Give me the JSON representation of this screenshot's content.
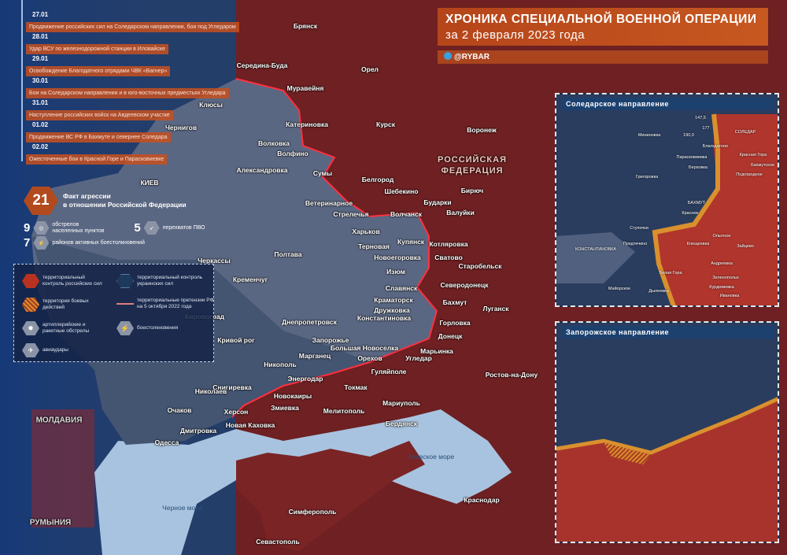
{
  "header": {
    "title": "ХРОНИКА СПЕЦИАЛЬНОЙ ВОЕННОЙ ОПЕРАЦИИ",
    "subtitle": "за 2 февраля 2023 года",
    "brand": "@RYBAR"
  },
  "timeline": [
    {
      "date": "27.01",
      "text": "Продвижение российских сил на Соледарском направлении, бои под Угледаром"
    },
    {
      "date": "28.01",
      "text": "Удар ВСУ по железнодорожной станции в Иловайске"
    },
    {
      "date": "29.01",
      "text": "Освобождение Благодатного отрядами ЧВК «Вагнер»"
    },
    {
      "date": "30.01",
      "text": "Бои на Соледарском направлении и в юго-восточных предместьях Угледара"
    },
    {
      "date": "31.01",
      "text": "Наступление российских войск на Авдеевском участке"
    },
    {
      "date": "01.02",
      "text": "Продвижение ВС РФ в Бахмуте и севернее Соледара"
    },
    {
      "date": "02.02",
      "text": "Ожесточенные бои в Красной Горе и Парасковиевке"
    }
  ],
  "stats": {
    "total": "21",
    "total_label_1": "Факт агрессии",
    "total_label_2": "в отношении Российской Федерации",
    "shelling_count": "9",
    "shelling_label_1": "обстрелов",
    "shelling_label_2": "населенных пунктов",
    "air_defense_count": "5",
    "air_defense_label": "перехватов ПВО",
    "clashes_count": "7",
    "clashes_label": "районов активных боестолкновений"
  },
  "legend": [
    {
      "icon": "hex-red",
      "color": "#b8321f",
      "text": "территориальный контроль российских сил"
    },
    {
      "icon": "hex-blue",
      "color": "#1d3a5c",
      "text": "территориальный контроль украинских сил"
    },
    {
      "icon": "hex-striped",
      "color": "#d47a2a",
      "text": "территория боевых действий"
    },
    {
      "icon": "line-pink",
      "color": "#e08080",
      "text": "территориальные претензии РФ на 5 октября 2022 года"
    },
    {
      "icon": "artillery-icon",
      "text": "артиллерийские и ракетные обстрелы"
    },
    {
      "icon": "lightning-icon",
      "text": "боестолкновения"
    },
    {
      "icon": "airstrike-icon",
      "text": "авиаудары"
    }
  ],
  "map": {
    "region_label_1": "РОССИЙСКАЯ",
    "region_label_2": "ФЕДЕРАЦИЯ",
    "cities": [
      "Брянск",
      "Орел",
      "Курск",
      "Воронеж",
      "Середина-Буда",
      "Муравейня",
      "Клюсы",
      "Чернигов",
      "Катериновка",
      "Волковка",
      "Волфино",
      "Александровка",
      "Сумы",
      "КИЕВ",
      "Белгород",
      "Шебекино",
      "Бирюч",
      "Бударки",
      "Ветеринарное",
      "Стрелечья",
      "Волчанск",
      "Валуйки",
      "Харьков",
      "Купянск",
      "Терновая",
      "Котляровка",
      "Новоегоровка",
      "Сватово",
      "Старобельск",
      "Изюм",
      "Северодонецк",
      "Славянск",
      "Краматорск",
      "Бахмут",
      "Дружковка",
      "Луганск",
      "Константиновка",
      "Горловка",
      "Донецк",
      "Большая Новоселка",
      "Марьинка",
      "Запорожье",
      "Орехов",
      "Угледар",
      "Гуляйполе",
      "Марганец",
      "Энергодар",
      "Никополь",
      "Токмак",
      "Черкассы",
      "Полтава",
      "Кременчуг",
      "Кировоград",
      "Днепропетровск",
      "Кривой рог",
      "Снигиревка",
      "Николаев",
      "Новокаиры",
      "Змиевка",
      "Херсон",
      "Очаков",
      "Новая Каховка",
      "Дмитровка",
      "Одесса",
      "Мелитополь",
      "Мариуполь",
      "Бердянск",
      "Ростов-на-Дону",
      "Симферополь",
      "Севастополь",
      "Краснодар"
    ],
    "seas": [
      "Азовское море",
      "Черное море"
    ],
    "countries": [
      "МОЛДАВИЯ",
      "РУМЫНИЯ"
    ],
    "colors": {
      "russia": "#7a2426",
      "ukraine": "#5a6782",
      "sea": "#a8c3df"
    }
  },
  "insets": [
    {
      "title": "Соледарское направление",
      "places": [
        "Мининовка",
        "147,5",
        "177",
        "190,0",
        "СОЛЕДАР",
        "Благодатное",
        "Парасковиевка",
        "Красная Гора",
        "Бахмутское",
        "Берховка",
        "Подгородное",
        "Григоровка",
        "БАХМУТ",
        "Красное",
        "Ступочки",
        "Предтечино",
        "КОНСТАНТИНОВКА",
        "Опытное",
        "Клещеевка",
        "Зайцево",
        "Андреевка",
        "Белая Гора",
        "Зеленополье",
        "Курдюмовка",
        "Ивановка",
        "Дылеевка",
        "Майорское"
      ]
    },
    {
      "title": "Запорожское направление",
      "places": []
    }
  ]
}
